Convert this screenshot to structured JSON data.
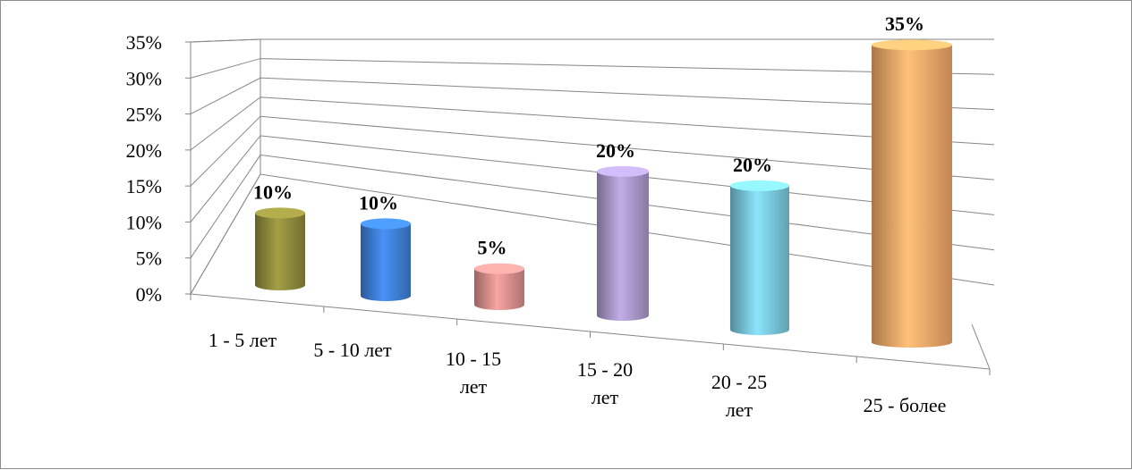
{
  "chart_data": {
    "type": "bar",
    "style": "3d-cylinder",
    "categories": [
      [
        "1 - 5 лет"
      ],
      [
        "5 - 10 лет"
      ],
      [
        "10 - 15",
        "лет"
      ],
      [
        "15 - 20",
        "лет"
      ],
      [
        "20 - 25",
        "лет"
      ],
      [
        "25 - более"
      ]
    ],
    "values": [
      10,
      10,
      5,
      20,
      20,
      35
    ],
    "data_labels": [
      "10%",
      "10%",
      "5%",
      "20%",
      "20%",
      "35%"
    ],
    "y_ticks": [
      "0%",
      "5%",
      "10%",
      "15%",
      "20%",
      "25%",
      "30%",
      "35%"
    ],
    "ylim": [
      0,
      35
    ],
    "grid": true,
    "legend": false,
    "colors": [
      "#8f8a3c",
      "#3f7fd6",
      "#d88f8d",
      "#a997c9",
      "#79c7dc",
      "#f4a868"
    ]
  }
}
